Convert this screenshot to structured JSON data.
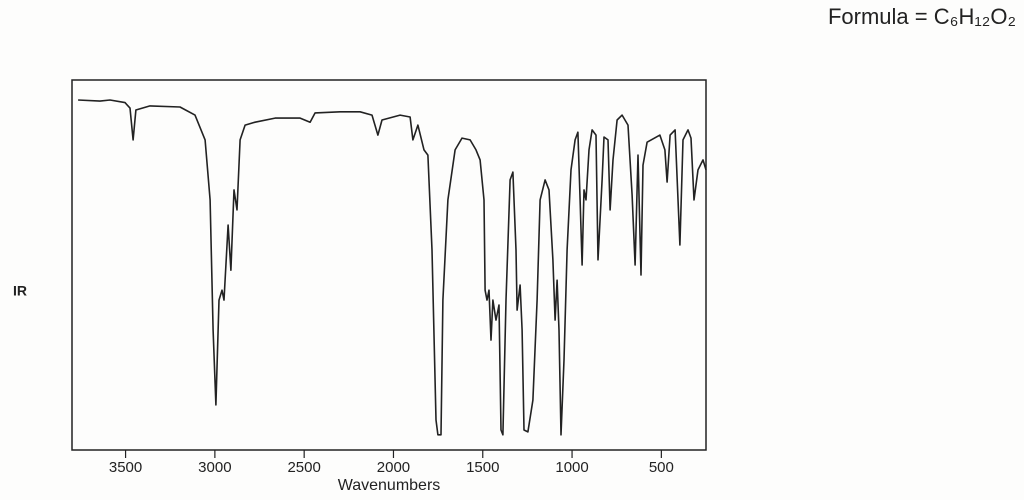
{
  "chart_data": {
    "type": "line",
    "title": "Formula = C₆H₁₂O₂",
    "side_label": "IR",
    "x_label": "Wavenumbers",
    "color": "#222222",
    "xlim": [
      3800,
      250
    ],
    "ylim": [
      0,
      100
    ],
    "xticks": [
      3500,
      3000,
      2500,
      2000,
      1500,
      1000,
      500
    ],
    "x": [
      3766,
      3643,
      3587,
      3503,
      3475,
      3458,
      3442,
      3363,
      3195,
      3111,
      3055,
      3027,
      3010,
      2994,
      2977,
      2960,
      2949,
      2926,
      2910,
      2893,
      2876,
      2859,
      2831,
      2775,
      2663,
      2523,
      2467,
      2439,
      2299,
      2187,
      2120,
      2087,
      2064,
      1963,
      1907,
      1891,
      1863,
      1829,
      1807,
      1784,
      1762,
      1751,
      1734,
      1723,
      1695,
      1655,
      1616,
      1571,
      1538,
      1515,
      1493,
      1487,
      1476,
      1465,
      1454,
      1443,
      1426,
      1409,
      1398,
      1387,
      1370,
      1347,
      1331,
      1314,
      1308,
      1291,
      1280,
      1269,
      1247,
      1219,
      1196,
      1179,
      1151,
      1129,
      1107,
      1095,
      1084,
      1073,
      1062,
      1045,
      1028,
      1006,
      983,
      967,
      955,
      944,
      933,
      922,
      905,
      888,
      866,
      855,
      832,
      821,
      799,
      787,
      771,
      748,
      720,
      687,
      664,
      647,
      631,
      614,
      603,
      580,
      508,
      480,
      468,
      451,
      423,
      396,
      379,
      351,
      334,
      317,
      295,
      267,
      250
    ],
    "values": [
      94.6,
      94.3,
      94.6,
      93.9,
      92.4,
      83.8,
      91.9,
      93.0,
      92.7,
      90.5,
      83.8,
      67.6,
      32.4,
      12.2,
      40.5,
      43.2,
      40.5,
      60.8,
      48.6,
      70.3,
      64.9,
      83.8,
      87.8,
      88.6,
      89.7,
      89.7,
      88.6,
      91.1,
      91.4,
      91.4,
      90.5,
      85.1,
      89.2,
      90.5,
      90.0,
      83.8,
      87.8,
      81.1,
      79.7,
      54.1,
      8.1,
      4.1,
      4.1,
      40.5,
      67.6,
      81.1,
      84.3,
      83.8,
      81.1,
      78.4,
      67.6,
      43.2,
      40.5,
      43.2,
      29.7,
      40.5,
      35.1,
      39.2,
      5.4,
      4.1,
      40.5,
      73.0,
      75.1,
      54.1,
      37.8,
      44.6,
      32.4,
      5.4,
      4.9,
      13.5,
      40.5,
      67.6,
      73.0,
      70.3,
      51.4,
      35.1,
      45.9,
      32.4,
      4.1,
      24.3,
      54.1,
      75.7,
      83.8,
      85.9,
      67.6,
      50.0,
      70.3,
      67.6,
      81.1,
      86.5,
      85.1,
      51.4,
      73.0,
      84.6,
      83.8,
      64.9,
      78.4,
      89.2,
      90.5,
      87.8,
      68.9,
      50.0,
      79.7,
      47.3,
      77.0,
      83.2,
      85.1,
      81.1,
      72.4,
      85.1,
      86.5,
      55.4,
      83.8,
      86.5,
      84.3,
      67.6,
      75.7,
      78.4,
      75.7
    ]
  }
}
